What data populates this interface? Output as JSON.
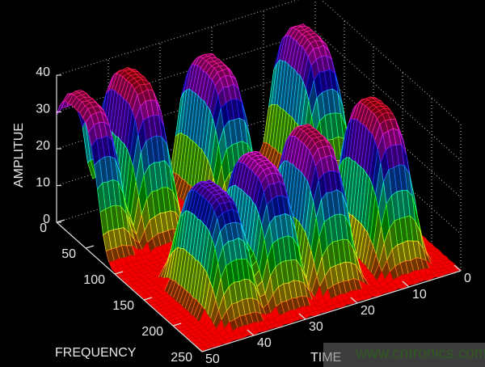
{
  "chart_data": {
    "type": "surface",
    "style": "3d mesh",
    "xlabel": "TIME",
    "ylabel": "FREQUENCY",
    "zlabel": "AMPLITUE",
    "xlim": [
      0,
      50
    ],
    "ylim": [
      0,
      250
    ],
    "zlim": [
      0,
      40
    ],
    "x_ticks": [
      "0",
      "10",
      "20",
      "30",
      "40",
      "50"
    ],
    "y_ticks": [
      "0",
      "50",
      "100",
      "150",
      "200",
      "250"
    ],
    "z_ticks": [
      "0",
      "10",
      "20",
      "30",
      "40"
    ],
    "grid": true,
    "colormap": "hsv (red at 0, through yellow, green, cyan, blue, magenta, red at top)",
    "peaks": [
      {
        "time": 48,
        "frequency": 30,
        "amplitude": 37
      },
      {
        "time": 38.5,
        "frequency": 30,
        "amplitude": 39
      },
      {
        "time": 23,
        "frequency": 30,
        "amplitude": 36
      },
      {
        "time": 5,
        "frequency": 30,
        "amplitude": 36
      },
      {
        "time": 40,
        "frequency": 180,
        "amplitude": 30
      },
      {
        "time": 31,
        "frequency": 180,
        "amplitude": 34
      },
      {
        "time": 21,
        "frequency": 180,
        "amplitude": 37
      },
      {
        "time": 8.5,
        "frequency": 180,
        "amplitude": 39
      }
    ]
  },
  "watermark": "www.cntronics.com"
}
